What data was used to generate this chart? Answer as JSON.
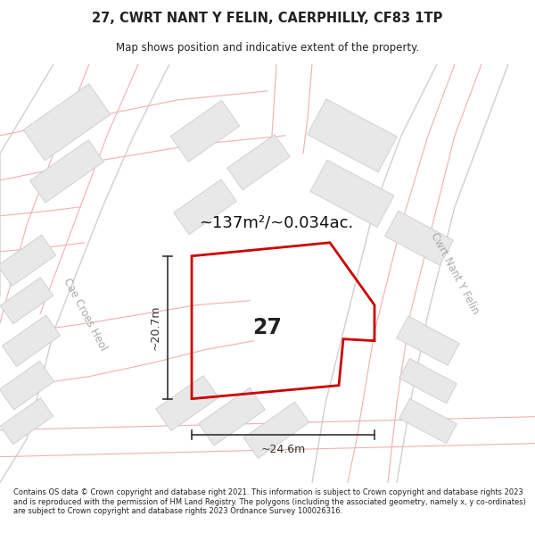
{
  "title_line1": "27, CWRT NANT Y FELIN, CAERPHILLY, CF83 1TP",
  "title_line2": "Map shows position and indicative extent of the property.",
  "area_text": "~137m²/~0.034ac.",
  "plot_number": "27",
  "dim_height": "~20.7m",
  "dim_width": "~24.6m",
  "street_label_left": "Cae Croes Heol",
  "street_label_right": "Cwrt Nant Y Felin",
  "footer_text": "Contains OS data © Crown copyright and database right 2021. This information is subject to Crown copyright and database rights 2023 and is reproduced with the permission of HM Land Registry. The polygons (including the associated geometry, namely x, y co-ordinates) are subject to Crown copyright and database rights 2023 Ordnance Survey 100026316.",
  "map_bg": "#ffffff",
  "plot_edge_color": "#cc0000",
  "road_line_color": "#f0b0b0",
  "road_fill_color": "#ffffff",
  "building_fill": "#e8e8e8",
  "building_edge": "#cccccc",
  "street_outline_color": "#d0d0d0",
  "dim_line_color": "#333333",
  "text_color": "#222222",
  "street_text_color": "#aaaaaa",
  "area_text_color": "#111111"
}
